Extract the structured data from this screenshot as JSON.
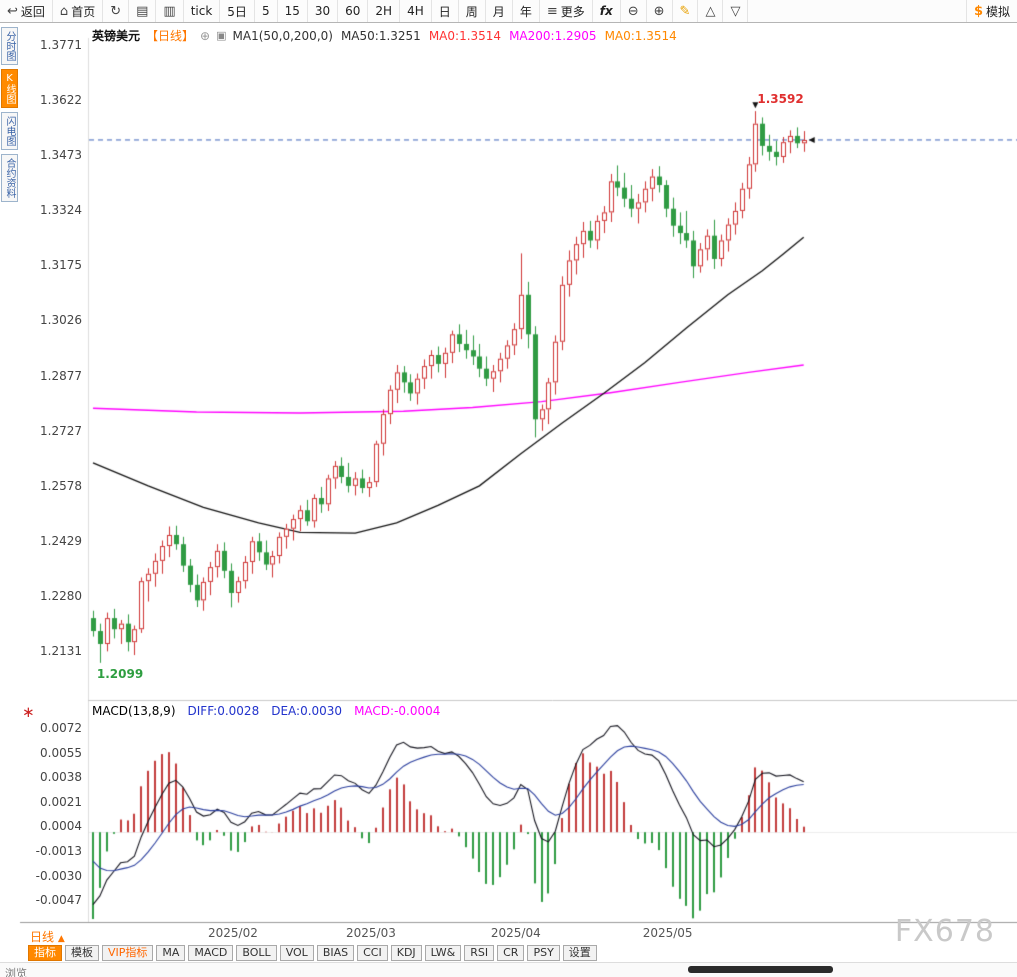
{
  "icons": {
    "back": "↩",
    "home": "⌂",
    "refresh": "↻",
    "chart-bars": "▤",
    "chart-candle": "▥",
    "menu": "≡",
    "zoom-out": "⊖",
    "zoom-in": "⊕",
    "pencil": "✎",
    "shape-up": "△",
    "shape-down": "▽",
    "dollar": "$",
    "add": "⊕",
    "legend-box": "▣",
    "asterisk": "∗",
    "caret-up": "▲"
  },
  "toolbar": {
    "items": [
      {
        "name": "back-button",
        "icon": "back",
        "label": "返回"
      },
      {
        "name": "home-button",
        "icon": "home",
        "label": "首页"
      },
      {
        "name": "refresh-button",
        "icon": "refresh"
      },
      {
        "name": "chart-style-bars-button",
        "icon": "chart-bars"
      },
      {
        "name": "chart-style-candle-button",
        "icon": "chart-candle"
      },
      {
        "name": "tick-button",
        "label": "tick"
      },
      {
        "name": "period-5d-button",
        "label": "5日"
      },
      {
        "name": "period-5m-button",
        "label": "5"
      },
      {
        "name": "period-15m-button",
        "label": "15"
      },
      {
        "name": "period-30m-button",
        "label": "30"
      },
      {
        "name": "period-60m-button",
        "label": "60"
      },
      {
        "name": "period-2h-button",
        "label": "2H"
      },
      {
        "name": "period-4h-button",
        "label": "4H"
      },
      {
        "name": "period-day-button",
        "label": "日"
      },
      {
        "name": "period-week-button",
        "label": "周"
      },
      {
        "name": "period-month-button",
        "label": "月"
      },
      {
        "name": "period-year-button",
        "label": "年"
      },
      {
        "name": "more-button",
        "icon": "menu",
        "label": "更多"
      },
      {
        "name": "fx-button",
        "label": "fx"
      },
      {
        "name": "zoom-out-button",
        "icon": "zoom-out"
      },
      {
        "name": "zoom-in-button",
        "icon": "zoom-in"
      },
      {
        "name": "draw-button",
        "icon": "pencil"
      },
      {
        "name": "shape-up-button",
        "icon": "shape-up"
      },
      {
        "name": "shape-down-button",
        "icon": "shape-down"
      },
      {
        "name": "simulate-button",
        "icon": "dollar",
        "label": "模拟",
        "right": true
      }
    ]
  },
  "sidebar": {
    "tabs": [
      {
        "id": "time-chart",
        "label": "分时图",
        "active": false
      },
      {
        "id": "kline-chart",
        "label": "K线图",
        "active": true
      },
      {
        "id": "lightning-chart",
        "label": "闪电图",
        "active": false
      },
      {
        "id": "contract-info",
        "label": "合约资料",
        "active": false
      }
    ]
  },
  "chart_header": {
    "symbol": "英镑美元",
    "period": "【日线】",
    "legend": [
      {
        "name": "ma-settings-label",
        "text": "MA1(50,0,200,0)",
        "color": "#333333"
      },
      {
        "name": "ma50-value-label",
        "text": "MA50:1.3251",
        "color": "#333333"
      },
      {
        "name": "ma0-red-value-label",
        "text": "MA0:1.3514",
        "color": "#ff3333"
      },
      {
        "name": "ma200-value-label",
        "text": "MA200:1.2905",
        "color": "#ff00ff"
      },
      {
        "name": "ma0-orange-value-label",
        "text": "MA0:1.3514",
        "color": "#ff8800"
      }
    ]
  },
  "chart_data": {
    "type": "candlestick",
    "title": "英镑美元【日线】 (GBP/USD daily)",
    "y_axis_labels": [
      "1.3771",
      "1.3622",
      "1.3473",
      "1.3324",
      "1.3175",
      "1.3026",
      "1.2877",
      "1.2727",
      "1.2578",
      "1.2429",
      "1.2280",
      "1.2131"
    ],
    "x_axis_ticks": [
      {
        "label": "2025/02",
        "candle_index": 20
      },
      {
        "label": "2025/03",
        "candle_index": 40
      },
      {
        "label": "2025/04",
        "candle_index": 61
      },
      {
        "label": "2025/05",
        "candle_index": 83
      }
    ],
    "high_annotation": {
      "text": "1.3592",
      "price": 1.3592,
      "candle_index": 96
    },
    "low_annotation": {
      "text": "1.2099",
      "price": 1.2099,
      "candle_index": 1
    },
    "current_price": 1.3514,
    "colors": {
      "up": "#cf3333",
      "down": "#2f9b43",
      "ma50": "#111111",
      "ma200": "#ff00ff",
      "price_line": "#3a62b8"
    },
    "candles": [
      [
        1.222,
        1.224,
        1.217,
        1.2185
      ],
      [
        1.2185,
        1.2205,
        1.2099,
        1.215
      ],
      [
        1.215,
        1.2235,
        1.213,
        1.222
      ],
      [
        1.222,
        1.2245,
        1.2165,
        1.219
      ],
      [
        1.219,
        1.2215,
        1.215,
        1.2205
      ],
      [
        1.2205,
        1.223,
        1.213,
        1.2155
      ],
      [
        1.2155,
        1.22,
        1.212,
        1.219
      ],
      [
        1.219,
        1.233,
        1.218,
        1.232
      ],
      [
        1.232,
        1.2355,
        1.2265,
        1.234
      ],
      [
        1.234,
        1.2395,
        1.2305,
        1.2375
      ],
      [
        1.2375,
        1.243,
        1.234,
        1.2415
      ],
      [
        1.2415,
        1.2468,
        1.2385,
        1.2445
      ],
      [
        1.2445,
        1.247,
        1.2405,
        1.242
      ],
      [
        1.242,
        1.244,
        1.2345,
        1.2362
      ],
      [
        1.2362,
        1.238,
        1.229,
        1.231
      ],
      [
        1.231,
        1.2338,
        1.225,
        1.2268
      ],
      [
        1.2268,
        1.233,
        1.224,
        1.2318
      ],
      [
        1.2318,
        1.2372,
        1.2282,
        1.2358
      ],
      [
        1.2358,
        1.242,
        1.233,
        1.2402
      ],
      [
        1.2402,
        1.2425,
        1.2328,
        1.2348
      ],
      [
        1.2348,
        1.2368,
        1.2249,
        1.2288
      ],
      [
        1.2288,
        1.2332,
        1.2262,
        1.232
      ],
      [
        1.232,
        1.2388,
        1.23,
        1.2372
      ],
      [
        1.2372,
        1.244,
        1.234,
        1.2428
      ],
      [
        1.2428,
        1.245,
        1.2375,
        1.2398
      ],
      [
        1.2398,
        1.243,
        1.235,
        1.2365
      ],
      [
        1.2365,
        1.2402,
        1.233,
        1.2388
      ],
      [
        1.2388,
        1.2452,
        1.2368,
        1.244
      ],
      [
        1.244,
        1.2475,
        1.2408,
        1.2462
      ],
      [
        1.2462,
        1.25,
        1.243,
        1.2488
      ],
      [
        1.2488,
        1.2525,
        1.2455,
        1.2512
      ],
      [
        1.2512,
        1.254,
        1.247,
        1.2482
      ],
      [
        1.2482,
        1.2555,
        1.2465,
        1.2545
      ],
      [
        1.2545,
        1.2575,
        1.2505,
        1.2528
      ],
      [
        1.2528,
        1.2608,
        1.251,
        1.2598
      ],
      [
        1.2598,
        1.2645,
        1.257,
        1.2632
      ],
      [
        1.2632,
        1.2655,
        1.2585,
        1.2602
      ],
      [
        1.2602,
        1.264,
        1.256,
        1.2578
      ],
      [
        1.2578,
        1.2615,
        1.2552,
        1.2598
      ],
      [
        1.2598,
        1.2622,
        1.2558,
        1.2572
      ],
      [
        1.2572,
        1.2602,
        1.2548,
        1.2588
      ],
      [
        1.2588,
        1.27,
        1.2575,
        1.2692
      ],
      [
        1.2692,
        1.2785,
        1.266,
        1.2772
      ],
      [
        1.2772,
        1.285,
        1.2745,
        1.2838
      ],
      [
        1.2838,
        1.2905,
        1.2802,
        1.2885
      ],
      [
        1.2885,
        1.2902,
        1.283,
        1.2858
      ],
      [
        1.2858,
        1.288,
        1.2808,
        1.2828
      ],
      [
        1.2828,
        1.2882,
        1.2798,
        1.2868
      ],
      [
        1.2868,
        1.292,
        1.284,
        1.2902
      ],
      [
        1.2902,
        1.2945,
        1.2868,
        1.2932
      ],
      [
        1.2932,
        1.2955,
        1.2885,
        1.2908
      ],
      [
        1.2908,
        1.2952,
        1.287,
        1.2938
      ],
      [
        1.2938,
        1.2998,
        1.291,
        1.2988
      ],
      [
        1.2988,
        1.3015,
        1.294,
        1.2962
      ],
      [
        1.2962,
        1.3,
        1.2922,
        1.2945
      ],
      [
        1.2945,
        1.2985,
        1.2905,
        1.2928
      ],
      [
        1.2928,
        1.2962,
        1.2872,
        1.2895
      ],
      [
        1.2895,
        1.2928,
        1.2848,
        1.2868
      ],
      [
        1.2868,
        1.2905,
        1.2832,
        1.2888
      ],
      [
        1.2888,
        1.2938,
        1.2858,
        1.2922
      ],
      [
        1.2922,
        1.2972,
        1.2895,
        1.2958
      ],
      [
        1.2958,
        1.3018,
        1.2932,
        1.3002
      ],
      [
        1.3002,
        1.3207,
        1.2975,
        1.3095
      ],
      [
        1.3095,
        1.313,
        1.295,
        1.2988
      ],
      [
        1.2988,
        1.301,
        1.2709,
        1.2758
      ],
      [
        1.2758,
        1.2798,
        1.2727,
        1.2785
      ],
      [
        1.2785,
        1.287,
        1.2745,
        1.2858
      ],
      [
        1.2858,
        1.2985,
        1.2825,
        1.2968
      ],
      [
        1.2968,
        1.3145,
        1.2945,
        1.3122
      ],
      [
        1.3122,
        1.3215,
        1.309,
        1.3188
      ],
      [
        1.3188,
        1.3252,
        1.315,
        1.3232
      ],
      [
        1.3232,
        1.3292,
        1.3195,
        1.3268
      ],
      [
        1.3268,
        1.3295,
        1.3222,
        1.3242
      ],
      [
        1.3242,
        1.331,
        1.3218,
        1.3295
      ],
      [
        1.3295,
        1.3335,
        1.3262,
        1.3318
      ],
      [
        1.3318,
        1.3422,
        1.3292,
        1.3402
      ],
      [
        1.3402,
        1.3445,
        1.3362,
        1.3385
      ],
      [
        1.3385,
        1.3425,
        1.3332,
        1.3355
      ],
      [
        1.3355,
        1.3392,
        1.3305,
        1.3328
      ],
      [
        1.3328,
        1.3368,
        1.3288,
        1.3345
      ],
      [
        1.3345,
        1.3402,
        1.3318,
        1.3382
      ],
      [
        1.3382,
        1.3435,
        1.3348,
        1.3415
      ],
      [
        1.3415,
        1.3443,
        1.3372,
        1.3392
      ],
      [
        1.3392,
        1.3405,
        1.3305,
        1.3328
      ],
      [
        1.3328,
        1.3358,
        1.3252,
        1.3282
      ],
      [
        1.3282,
        1.3318,
        1.3232,
        1.3262
      ],
      [
        1.3262,
        1.3322,
        1.3222,
        1.3242
      ],
      [
        1.3242,
        1.3268,
        1.314,
        1.3172
      ],
      [
        1.3172,
        1.3235,
        1.3155,
        1.3218
      ],
      [
        1.3218,
        1.3272,
        1.3188,
        1.3255
      ],
      [
        1.3255,
        1.3298,
        1.3165,
        1.3192
      ],
      [
        1.3192,
        1.3258,
        1.3172,
        1.3242
      ],
      [
        1.3242,
        1.3302,
        1.3212,
        1.3285
      ],
      [
        1.3285,
        1.3345,
        1.3258,
        1.3322
      ],
      [
        1.3322,
        1.3398,
        1.3302,
        1.3382
      ],
      [
        1.3382,
        1.3468,
        1.3355,
        1.3448
      ],
      [
        1.3448,
        1.3592,
        1.3428,
        1.3558
      ],
      [
        1.3558,
        1.3575,
        1.3472,
        1.3498
      ],
      [
        1.3498,
        1.3528,
        1.3458,
        1.3482
      ],
      [
        1.3482,
        1.3512,
        1.3445,
        1.3468
      ],
      [
        1.3468,
        1.3522,
        1.3452,
        1.3508
      ],
      [
        1.3508,
        1.354,
        1.3478,
        1.3525
      ],
      [
        1.3525,
        1.3548,
        1.3492,
        1.3505
      ],
      [
        1.3505,
        1.3538,
        1.3482,
        1.3514
      ]
    ],
    "overlays": {
      "ma50_points": [
        [
          0,
          1.264
        ],
        [
          8,
          1.2578
        ],
        [
          16,
          1.252
        ],
        [
          24,
          1.2478
        ],
        [
          30,
          1.2452
        ],
        [
          38,
          1.245
        ],
        [
          44,
          1.2478
        ],
        [
          50,
          1.2525
        ],
        [
          56,
          1.2578
        ],
        [
          62,
          1.2665
        ],
        [
          68,
          1.2748
        ],
        [
          74,
          1.2828
        ],
        [
          80,
          1.2912
        ],
        [
          86,
          1.3005
        ],
        [
          92,
          1.3095
        ],
        [
          97,
          1.316
        ],
        [
          100,
          1.3205
        ],
        [
          103,
          1.3251
        ]
      ],
      "ma200_points": [
        [
          0,
          1.2788
        ],
        [
          15,
          1.2778
        ],
        [
          30,
          1.2775
        ],
        [
          45,
          1.278
        ],
        [
          55,
          1.279
        ],
        [
          65,
          1.2806
        ],
        [
          75,
          1.283
        ],
        [
          85,
          1.2858
        ],
        [
          95,
          1.2885
        ],
        [
          103,
          1.2905
        ]
      ]
    }
  },
  "macd": {
    "title": "MACD(13,8,9)",
    "diff_label": "DIFF:0.0028",
    "dea_label": "DEA:0.0030",
    "macd_label": "MACD:-0.0004",
    "y_axis_labels": [
      "0.0072",
      "0.0055",
      "0.0038",
      "0.0021",
      "0.0004",
      "-0.0013",
      "-0.0030",
      "-0.0047"
    ],
    "colors": {
      "diff": "#2233cc",
      "dea": "#2233cc",
      "macd": "#ff00ff",
      "bar_up": "#c23b3b",
      "bar_down": "#2f9b43",
      "line_diff": "#15151f",
      "line_dea": "#2b3f9e",
      "icon": "#cc2222"
    }
  },
  "bottom": {
    "period_label": "日线",
    "tabs": [
      {
        "id": "indicator",
        "label": "指标",
        "style": "active"
      },
      {
        "id": "template",
        "label": "模板"
      },
      {
        "id": "vip-indicator",
        "label": "VIP指标",
        "style": "vip"
      },
      {
        "id": "ma",
        "label": "MA"
      },
      {
        "id": "macd",
        "label": "MACD"
      },
      {
        "id": "boll",
        "label": "BOLL"
      },
      {
        "id": "vol",
        "label": "VOL"
      },
      {
        "id": "bias",
        "label": "BIAS"
      },
      {
        "id": "cci",
        "label": "CCI"
      },
      {
        "id": "kdj",
        "label": "KDJ"
      },
      {
        "id": "lwr",
        "label": "LW&"
      },
      {
        "id": "rsi",
        "label": "RSI"
      },
      {
        "id": "cr",
        "label": "CR"
      },
      {
        "id": "psy",
        "label": "PSY"
      },
      {
        "id": "settings",
        "label": "设置"
      }
    ],
    "watermark": "FX678",
    "partial_tab": "浏览"
  }
}
